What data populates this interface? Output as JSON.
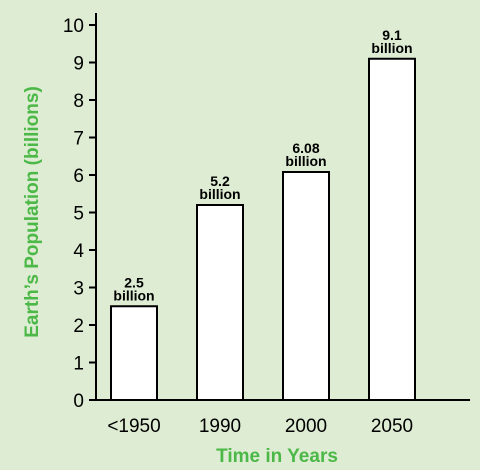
{
  "chart_data": {
    "type": "bar",
    "categories": [
      "<1950",
      "1990",
      "2000",
      "2050"
    ],
    "values": [
      2.5,
      5.2,
      6.08,
      9.1
    ],
    "value_labels": [
      [
        "2.5",
        "billion"
      ],
      [
        "5.2",
        "billion"
      ],
      [
        "6.08",
        "billion"
      ],
      [
        "9.1",
        "billion"
      ]
    ],
    "title": "",
    "xlabel": "Time in Years",
    "ylabel": "Earth’s Population (billions)",
    "ylim": [
      0,
      10
    ],
    "yticks": [
      "0",
      "1",
      "2",
      "3",
      "4",
      "5",
      "6",
      "7",
      "8",
      "9",
      "10"
    ],
    "grid": false,
    "legend": "none",
    "colors": {
      "background": "#ddecd2",
      "bar_fill": "#ffffff",
      "bar_stroke": "#000000",
      "axis_title": "#4cb848"
    }
  }
}
